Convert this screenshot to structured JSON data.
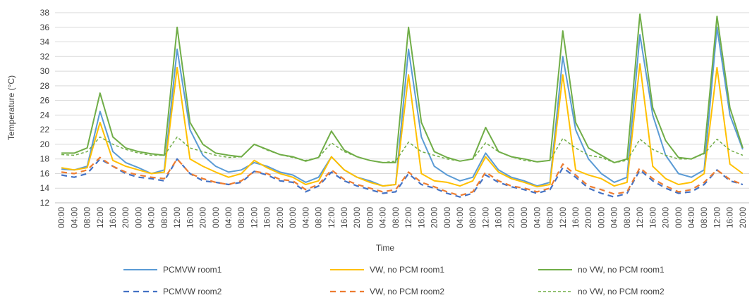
{
  "chart_data": {
    "type": "line",
    "y_label": "Temperature (°C)",
    "x_label": "Time",
    "categories": [
      "00:00",
      "04:00",
      "08:00",
      "12:00",
      "16:00",
      "20:00",
      "00:00",
      "04:00",
      "08:00",
      "12:00",
      "16:00",
      "20:00",
      "00:00",
      "04:00",
      "08:00",
      "12:00",
      "16:00",
      "20:00",
      "00:00",
      "04:00",
      "08:00",
      "12:00",
      "16:00",
      "20:00",
      "00:00",
      "04:00",
      "08:00",
      "12:00",
      "16:00",
      "20:00",
      "00:00",
      "04:00",
      "08:00",
      "12:00",
      "16:00",
      "20:00",
      "00:00",
      "04:00",
      "08:00",
      "12:00",
      "16:00",
      "20:00",
      "00:00",
      "04:00",
      "08:00",
      "12:00",
      "16:00",
      "20:00",
      "00:00",
      "04:00",
      "08:00",
      "12:00",
      "16:00",
      "20:00"
    ],
    "ylim": [
      12,
      38
    ],
    "yticks": [
      12,
      14,
      16,
      18,
      20,
      22,
      24,
      26,
      28,
      30,
      32,
      34,
      36,
      38
    ],
    "grid": true,
    "legend": "bottom",
    "series": [
      {
        "name": "PCMVW room1",
        "color": "#5b9bd5",
        "style": "solid",
        "values": [
          16.6,
          16.5,
          17,
          24.5,
          19,
          17.5,
          16.8,
          16,
          16.5,
          33,
          22,
          18.5,
          17,
          16.2,
          16.5,
          17.5,
          17,
          16.2,
          15.8,
          14.8,
          15.5,
          18.3,
          16.5,
          15.5,
          15,
          14.3,
          14.5,
          33,
          21,
          17,
          15.8,
          15,
          15.5,
          18.8,
          16.5,
          15.5,
          15,
          14.3,
          14.8,
          32,
          22,
          18,
          16,
          14.8,
          15.5,
          35,
          24,
          18.5,
          16,
          15.5,
          16.5,
          36,
          24,
          19.3
        ]
      },
      {
        "name": "VW, no PCM room1",
        "color": "#ffc000",
        "style": "solid",
        "values": [
          16.8,
          16.5,
          16.8,
          23,
          17.8,
          17,
          16.5,
          16,
          16.2,
          30.5,
          18,
          17,
          16.2,
          15.5,
          16,
          17.8,
          16.8,
          16,
          15.5,
          14.5,
          15,
          18.3,
          16.5,
          15.5,
          14.8,
          14.3,
          14.5,
          29.5,
          16,
          15,
          14.8,
          14.3,
          15,
          18.3,
          16.2,
          15.3,
          14.8,
          14.2,
          14.5,
          29.5,
          16.5,
          15.8,
          15.3,
          14.3,
          14.8,
          31,
          17,
          15.3,
          14.5,
          14.8,
          16,
          30.5,
          17.3,
          16
        ]
      },
      {
        "name": "no VW, no PCM room1",
        "color": "#70ad47",
        "style": "solid",
        "values": [
          18.8,
          18.8,
          19.5,
          27,
          21,
          19.5,
          19,
          18.7,
          18.5,
          36,
          23,
          20,
          18.8,
          18.5,
          18.3,
          20,
          19.3,
          18.6,
          18.3,
          17.7,
          18.2,
          21.8,
          19.2,
          18.3,
          17.8,
          17.5,
          17.5,
          36,
          23,
          19,
          18.2,
          17.7,
          18,
          22.3,
          19,
          18.3,
          18,
          17.6,
          17.8,
          35.5,
          23,
          19.5,
          18.5,
          17.5,
          18,
          37.8,
          25,
          20.5,
          18.2,
          18,
          18.8,
          37.5,
          25,
          19.5
        ]
      },
      {
        "name": "PCMVW room2",
        "color": "#4472c4",
        "style": "dashed",
        "values": [
          15.8,
          15.5,
          16,
          18,
          17,
          16,
          15.5,
          15.3,
          15,
          18,
          16,
          15,
          14.8,
          14.5,
          14.8,
          16.3,
          15.8,
          15,
          14.8,
          13.5,
          14.3,
          16.2,
          15,
          14.3,
          13.8,
          13.3,
          13.5,
          16,
          14.5,
          14,
          13.3,
          12.8,
          13.3,
          15.8,
          14.8,
          14.2,
          13.8,
          13.3,
          13.8,
          16.8,
          15.5,
          14,
          13.3,
          12.8,
          13.3,
          16.5,
          15,
          14,
          13.3,
          13.5,
          14.5,
          16.5,
          15,
          14.5
        ]
      },
      {
        "name": "VW, no PCM room2",
        "color": "#ed7d31",
        "style": "dashed",
        "values": [
          16.2,
          16,
          16.5,
          18.2,
          17,
          16.2,
          15.8,
          15.5,
          15.3,
          18,
          16,
          15.3,
          14.8,
          14.5,
          15,
          16.3,
          16,
          15.2,
          15,
          13.8,
          14.5,
          16.5,
          15.2,
          14.5,
          14,
          13.5,
          13.8,
          16.2,
          14.8,
          14.2,
          13.5,
          13,
          13.5,
          16.2,
          15,
          14.3,
          14,
          13.5,
          14,
          17.3,
          15.8,
          14.3,
          13.8,
          13.2,
          13.5,
          16.8,
          15.3,
          14.3,
          13.5,
          13.8,
          14.8,
          16.5,
          15.2,
          14.5
        ]
      },
      {
        "name": "no VW, no PCM room2",
        "color": "#70ad47",
        "style": "dotted",
        "values": [
          18.6,
          18.5,
          19,
          21,
          20,
          19.3,
          18.8,
          18.5,
          18.5,
          21,
          19.5,
          19,
          18.5,
          18.2,
          18.3,
          20,
          19.2,
          18.6,
          18.2,
          17.8,
          18.2,
          20.2,
          19,
          18.3,
          17.8,
          17.5,
          17.7,
          20.3,
          19,
          18.5,
          18,
          17.7,
          18,
          20.2,
          19,
          18.3,
          17.8,
          17.6,
          17.8,
          20.8,
          19.5,
          18.5,
          18.2,
          17.5,
          17.8,
          20.7,
          19.3,
          18.5,
          18,
          18,
          18.7,
          20.7,
          19.2,
          18.5
        ]
      }
    ]
  }
}
